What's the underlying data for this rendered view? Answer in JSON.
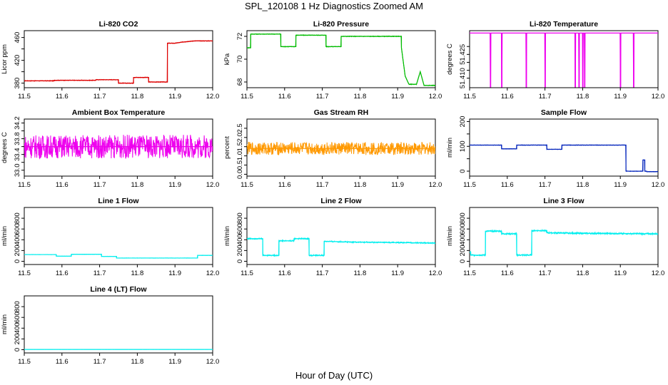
{
  "figure": {
    "title": "SPL_120108  1 Hz Diagnostics Zoomed AM",
    "xlabel": "Hour of Day (UTC)"
  },
  "chart_data": [
    {
      "type": "line",
      "title": "Li-820 CO2",
      "ylabel": "Licor ppm",
      "color": "#dd0000",
      "xlim": [
        11.5,
        12.0
      ],
      "xticks": [
        11.5,
        11.6,
        11.7,
        11.8,
        11.9,
        12.0
      ],
      "xtick_labels": [
        "11.5",
        "11.6",
        "11.7",
        "11.8",
        "11.9",
        "12.0"
      ],
      "ylim": [
        372,
        472
      ],
      "yticks": [
        380,
        400,
        420,
        440,
        460
      ],
      "ytick_labels": [
        "380",
        "",
        "420",
        "",
        "460"
      ],
      "noise": 0.6,
      "series": [
        {
          "x": [
            11.5,
            11.58,
            11.58,
            11.69,
            11.69,
            11.75,
            11.75,
            11.79,
            11.79,
            11.83,
            11.83,
            11.88,
            11.88,
            11.9,
            11.92,
            11.95,
            11.97,
            12.0
          ],
          "y": [
            384,
            384,
            385,
            385,
            386,
            386,
            380,
            380,
            390,
            390,
            382,
            382,
            450,
            450,
            452,
            454,
            454,
            454
          ]
        }
      ]
    },
    {
      "type": "line",
      "title": "Li-820 Pressure",
      "ylabel": "kPa",
      "color": "#00bb00",
      "xlim": [
        11.5,
        12.0
      ],
      "xticks": [
        11.5,
        11.6,
        11.7,
        11.8,
        11.9,
        12.0
      ],
      "xtick_labels": [
        "11.5",
        "11.6",
        "11.7",
        "11.8",
        "11.9",
        "12.0"
      ],
      "ylim": [
        67.5,
        72.5
      ],
      "yticks": [
        68,
        70,
        72
      ],
      "ytick_labels": [
        "68",
        "70",
        "72"
      ],
      "noise": 0.03,
      "series": [
        {
          "x": [
            11.5,
            11.51,
            11.51,
            11.59,
            11.59,
            11.63,
            11.63,
            11.71,
            11.71,
            11.75,
            11.75,
            11.91,
            11.91,
            11.92,
            11.93,
            11.95,
            11.96,
            11.97,
            12.0
          ],
          "y": [
            71.0,
            71.0,
            72.2,
            72.2,
            71.1,
            71.1,
            72.1,
            72.1,
            71.1,
            71.1,
            72.0,
            72.0,
            71.0,
            68.5,
            67.8,
            67.8,
            68.9,
            67.7,
            67.7
          ]
        }
      ]
    },
    {
      "type": "line",
      "title": "Li-820 Temperature",
      "ylabel": "degrees C",
      "color": "#ee00ee",
      "xlim": [
        11.5,
        12.0
      ],
      "xticks": [
        11.5,
        11.6,
        11.7,
        11.8,
        11.9,
        12.0
      ],
      "xtick_labels": [
        "11.5",
        "11.6",
        "11.7",
        "11.8",
        "11.9",
        "12.0"
      ],
      "ylim": [
        51.404,
        51.44
      ],
      "yticks": [
        51.41,
        51.415,
        51.42,
        51.425,
        51.43
      ],
      "ytick_labels": [
        "51.410",
        "",
        "",
        "51.425",
        ""
      ],
      "noise": 0,
      "series": [
        {
          "x": [
            11.5,
            11.555,
            11.555,
            11.556,
            11.556,
            11.585,
            11.585,
            11.586,
            11.586,
            11.65,
            11.65,
            11.651,
            11.651,
            11.7,
            11.7,
            11.701,
            11.701,
            11.78,
            11.78,
            11.781,
            11.781,
            11.79,
            11.79,
            11.791,
            11.791,
            11.8,
            11.8,
            11.801,
            11.801,
            11.805,
            11.805,
            11.806,
            11.806,
            11.9,
            11.9,
            11.901,
            11.901,
            11.935,
            11.935,
            11.936,
            11.936,
            12.0
          ],
          "y": [
            51.4385,
            51.4385,
            51.4045,
            51.4045,
            51.4385,
            51.4385,
            51.4045,
            51.4045,
            51.4385,
            51.4385,
            51.4045,
            51.4045,
            51.4385,
            51.4385,
            51.4045,
            51.4045,
            51.4385,
            51.4385,
            51.4045,
            51.4045,
            51.4385,
            51.4385,
            51.4045,
            51.4045,
            51.4385,
            51.4385,
            51.4045,
            51.4045,
            51.4385,
            51.4385,
            51.4045,
            51.4045,
            51.4385,
            51.4385,
            51.4045,
            51.4045,
            51.4385,
            51.4385,
            51.4045,
            51.4045,
            51.4385,
            51.4385
          ]
        }
      ]
    },
    {
      "type": "line",
      "title": "Ambient Box Temperature",
      "ylabel": "degrees C",
      "color": "#ee00ee",
      "xlim": [
        11.5,
        12.0
      ],
      "xticks": [
        11.5,
        11.6,
        11.7,
        11.8,
        11.9,
        12.0
      ],
      "xtick_labels": [
        "11.5",
        "11.6",
        "11.7",
        "11.8",
        "11.9",
        "12.0"
      ],
      "ylim": [
        32.85,
        34.3
      ],
      "yticks": [
        33.0,
        33.2,
        33.4,
        33.6,
        33.8,
        34.0,
        34.2
      ],
      "ytick_labels": [
        "33.0",
        "",
        "33.4",
        "",
        "33.8",
        "",
        "34.2"
      ],
      "noise": 0.3,
      "series": [
        {
          "x": [
            11.5,
            12.0
          ],
          "y": [
            33.6,
            33.6
          ]
        }
      ]
    },
    {
      "type": "line",
      "title": "Gas Stream RH",
      "ylabel": "percent",
      "color": "#ff9900",
      "xlim": [
        11.5,
        12.0
      ],
      "xticks": [
        11.5,
        11.6,
        11.7,
        11.8,
        11.9,
        12.0
      ],
      "xtick_labels": [
        "11.5",
        "11.6",
        "11.7",
        "11.8",
        "11.9",
        "12.0"
      ],
      "ylim": [
        -0.1,
        3.0
      ],
      "yticks": [
        0.0,
        0.5,
        1.0,
        1.5,
        2.0,
        2.5
      ],
      "ytick_labels": [
        "0.0",
        "0.5",
        "1.0",
        "1.5",
        "2.0",
        "2.5"
      ],
      "noise": 0.35,
      "series": [
        {
          "x": [
            11.5,
            12.0
          ],
          "y": [
            1.4,
            1.4
          ]
        }
      ]
    },
    {
      "type": "line",
      "title": "Sample Flow",
      "ylabel": "ml/min",
      "color": "#0022bb",
      "xlim": [
        11.5,
        12.0
      ],
      "xticks": [
        11.5,
        11.6,
        11.7,
        11.8,
        11.9,
        12.0
      ],
      "xtick_labels": [
        "11.5",
        "11.6",
        "11.7",
        "11.8",
        "11.9",
        "12.0"
      ],
      "ylim": [
        -20,
        210
      ],
      "yticks": [
        0,
        50,
        100,
        150,
        200
      ],
      "ytick_labels": [
        "0",
        "",
        "100",
        "",
        "200"
      ],
      "noise": 1,
      "series": [
        {
          "x": [
            11.5,
            11.585,
            11.585,
            11.625,
            11.625,
            11.705,
            11.705,
            11.745,
            11.745,
            11.915,
            11.915,
            11.96,
            11.96,
            11.965,
            11.965,
            11.97,
            11.97,
            12.0
          ],
          "y": [
            105,
            105,
            90,
            90,
            105,
            105,
            88,
            88,
            105,
            105,
            0,
            0,
            45,
            45,
            0,
            0,
            -2,
            -2
          ]
        }
      ]
    },
    {
      "type": "line",
      "title": "Line 1 Flow",
      "ylabel": "ml/min",
      "color": "#00eeee",
      "xlim": [
        11.5,
        12.0
      ],
      "xticks": [
        11.5,
        11.6,
        11.7,
        11.8,
        11.9,
        12.0
      ],
      "xtick_labels": [
        "11.5",
        "11.6",
        "11.7",
        "11.8",
        "11.9",
        "12.0"
      ],
      "ylim": [
        -60,
        1000
      ],
      "yticks": [
        0,
        200,
        400,
        600,
        800
      ],
      "ytick_labels": [
        "0",
        "200",
        "400",
        "600",
        "800"
      ],
      "noise": 3,
      "series": [
        {
          "x": [
            11.5,
            11.585,
            11.585,
            11.625,
            11.625,
            11.705,
            11.705,
            11.745,
            11.745,
            11.96,
            11.96,
            12.0
          ],
          "y": [
            125,
            125,
            95,
            95,
            130,
            130,
            90,
            90,
            60,
            60,
            110,
            110
          ]
        }
      ]
    },
    {
      "type": "line",
      "title": "Line 2 Flow",
      "ylabel": "ml/min",
      "color": "#00eeee",
      "xlim": [
        11.5,
        12.0
      ],
      "xticks": [
        11.5,
        11.6,
        11.7,
        11.8,
        11.9,
        12.0
      ],
      "xtick_labels": [
        "11.5",
        "11.6",
        "11.7",
        "11.8",
        "11.9",
        "12.0"
      ],
      "ylim": [
        -60,
        1000
      ],
      "yticks": [
        0,
        200,
        400,
        600,
        800
      ],
      "ytick_labels": [
        "0",
        "200",
        "400",
        "600",
        "800"
      ],
      "noise": 12,
      "series": [
        {
          "x": [
            11.5,
            11.542,
            11.542,
            11.585,
            11.585,
            11.625,
            11.625,
            11.665,
            11.665,
            11.705,
            11.705,
            11.8,
            12.0
          ],
          "y": [
            420,
            420,
            110,
            110,
            380,
            380,
            420,
            420,
            110,
            110,
            370,
            355,
            340
          ]
        }
      ]
    },
    {
      "type": "line",
      "title": "Line 3 Flow",
      "ylabel": "ml/min",
      "color": "#00eeee",
      "xlim": [
        11.5,
        12.0
      ],
      "xticks": [
        11.5,
        11.6,
        11.7,
        11.8,
        11.9,
        12.0
      ],
      "xtick_labels": [
        "11.5",
        "11.6",
        "11.7",
        "11.8",
        "11.9",
        "12.0"
      ],
      "ylim": [
        -60,
        1000
      ],
      "yticks": [
        0,
        200,
        400,
        600,
        800
      ],
      "ytick_labels": [
        "0",
        "200",
        "400",
        "600",
        "800"
      ],
      "noise": 15,
      "series": [
        {
          "x": [
            11.5,
            11.503,
            11.503,
            11.542,
            11.542,
            11.585,
            11.585,
            11.625,
            11.625,
            11.665,
            11.665,
            11.705,
            11.705,
            11.8,
            12.0
          ],
          "y": [
            170,
            170,
            115,
            115,
            560,
            560,
            510,
            510,
            115,
            115,
            570,
            570,
            530,
            520,
            510
          ]
        }
      ]
    },
    {
      "type": "line",
      "title": "Line 4 (LT) Flow",
      "ylabel": "ml/min",
      "color": "#00eeee",
      "xlim": [
        11.5,
        12.0
      ],
      "xticks": [
        11.5,
        11.6,
        11.7,
        11.8,
        11.9,
        12.0
      ],
      "xtick_labels": [
        "11.5",
        "11.6",
        "11.7",
        "11.8",
        "11.9",
        "12.0"
      ],
      "ylim": [
        -60,
        1000
      ],
      "yticks": [
        0,
        200,
        400,
        600,
        800
      ],
      "ytick_labels": [
        "0",
        "200",
        "400",
        "600",
        "800"
      ],
      "noise": 1,
      "series": [
        {
          "x": [
            11.5,
            12.0
          ],
          "y": [
            5,
            5
          ]
        }
      ]
    }
  ]
}
